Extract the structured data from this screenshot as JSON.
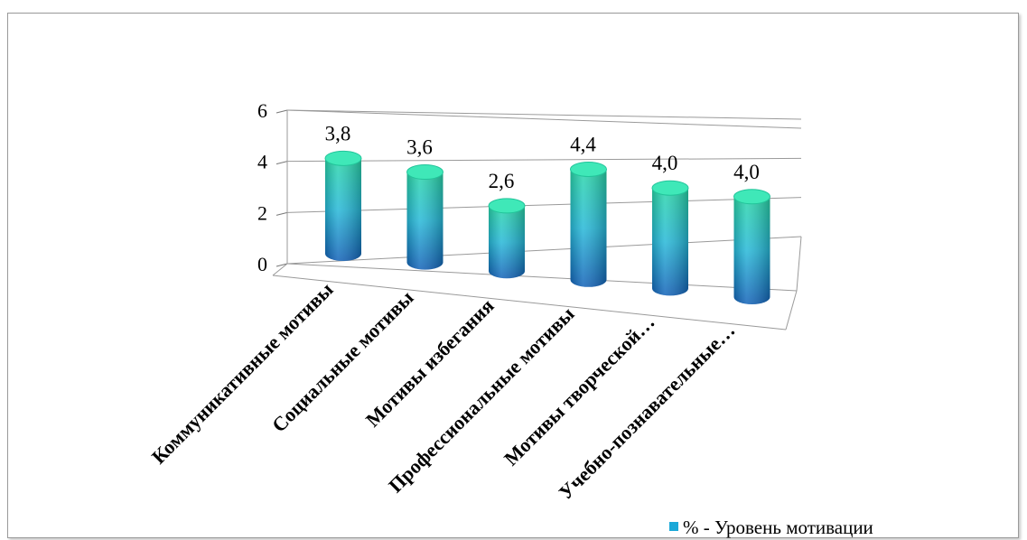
{
  "chart_data": {
    "type": "bar",
    "categories": [
      "Коммуникативные мотивы",
      "Социальные мотивы",
      "Мотивы избегания",
      "Профессиональные мотивы",
      "Мотивы творческой…",
      "Учебно-познавательные…"
    ],
    "series": [
      {
        "name": "% - Уровень мотивации",
        "values": [
          3.8,
          3.6,
          2.6,
          4.4,
          4.0,
          4.0
        ]
      }
    ],
    "data_labels": [
      "3,8",
      "3,6",
      "2,6",
      "4,4",
      "4,0",
      "4,0"
    ],
    "y_ticks": [
      "0",
      "2",
      "4",
      "6"
    ],
    "ylim": [
      0,
      6
    ],
    "grid": true,
    "legend_position": "bottom-right",
    "style": "3d-cylinder",
    "colors": {
      "top": "#2ad7a8",
      "middle": "#26b8d8",
      "bottom": "#1262b8",
      "legend": "#1aa8d8"
    }
  }
}
